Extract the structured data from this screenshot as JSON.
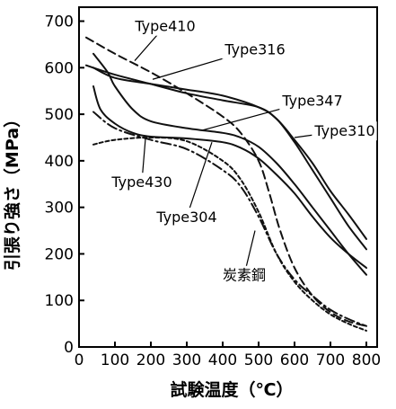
{
  "chart_data": {
    "type": "line",
    "title": "",
    "xlabel": "試験温度（℃）",
    "ylabel": "引張り強さ（MPa）",
    "xlim": [
      0,
      830
    ],
    "ylim": [
      0,
      730
    ],
    "x_ticks": [
      0,
      100,
      200,
      300,
      400,
      500,
      600,
      700,
      800
    ],
    "y_ticks": [
      0,
      100,
      200,
      300,
      400,
      500,
      600,
      700
    ],
    "grid": false,
    "legend": "none",
    "series": [
      {
        "name": "Type410",
        "style": "dashed",
        "points": [
          [
            20,
            665
          ],
          [
            100,
            630
          ],
          [
            200,
            590
          ],
          [
            300,
            545
          ],
          [
            400,
            495
          ],
          [
            450,
            460
          ],
          [
            500,
            400
          ],
          [
            530,
            330
          ],
          [
            560,
            250
          ],
          [
            600,
            170
          ],
          [
            650,
            110
          ],
          [
            700,
            75
          ],
          [
            750,
            55
          ],
          [
            800,
            45
          ]
        ]
      },
      {
        "name": "Type316",
        "style": "solid",
        "points": [
          [
            40,
            600
          ],
          [
            100,
            578
          ],
          [
            200,
            565
          ],
          [
            300,
            553
          ],
          [
            400,
            540
          ],
          [
            500,
            515
          ],
          [
            550,
            490
          ],
          [
            600,
            440
          ],
          [
            650,
            380
          ],
          [
            700,
            320
          ],
          [
            750,
            260
          ],
          [
            800,
            210
          ]
        ]
      },
      {
        "name": "Type347",
        "style": "solid",
        "points": [
          [
            40,
            630
          ],
          [
            80,
            590
          ],
          [
            100,
            560
          ],
          [
            150,
            510
          ],
          [
            200,
            485
          ],
          [
            300,
            470
          ],
          [
            400,
            460
          ],
          [
            450,
            450
          ],
          [
            500,
            430
          ],
          [
            550,
            395
          ],
          [
            600,
            350
          ],
          [
            650,
            300
          ],
          [
            700,
            250
          ],
          [
            750,
            200
          ],
          [
            800,
            155
          ]
        ]
      },
      {
        "name": "Type310",
        "style": "solid",
        "points": [
          [
            20,
            605
          ],
          [
            100,
            585
          ],
          [
            200,
            565
          ],
          [
            300,
            545
          ],
          [
            400,
            530
          ],
          [
            500,
            515
          ],
          [
            550,
            490
          ],
          [
            600,
            445
          ],
          [
            650,
            395
          ],
          [
            700,
            335
          ],
          [
            750,
            285
          ],
          [
            800,
            232
          ]
        ]
      },
      {
        "name": "Type304",
        "style": "solid",
        "points": [
          [
            40,
            560
          ],
          [
            60,
            510
          ],
          [
            100,
            480
          ],
          [
            150,
            460
          ],
          [
            200,
            452
          ],
          [
            300,
            448
          ],
          [
            400,
            440
          ],
          [
            450,
            428
          ],
          [
            500,
            405
          ],
          [
            550,
            370
          ],
          [
            600,
            330
          ],
          [
            650,
            280
          ],
          [
            700,
            235
          ],
          [
            750,
            200
          ],
          [
            800,
            170
          ]
        ]
      },
      {
        "name": "Type430",
        "style": "dash-dot",
        "points": [
          [
            40,
            505
          ],
          [
            100,
            470
          ],
          [
            200,
            445
          ],
          [
            300,
            425
          ],
          [
            400,
            380
          ],
          [
            450,
            345
          ],
          [
            500,
            280
          ],
          [
            550,
            200
          ],
          [
            600,
            145
          ],
          [
            650,
            110
          ],
          [
            700,
            80
          ],
          [
            750,
            60
          ],
          [
            800,
            45
          ]
        ]
      },
      {
        "name": "炭素鋼",
        "style": "dotted",
        "points": [
          [
            40,
            435
          ],
          [
            100,
            445
          ],
          [
            200,
            450
          ],
          [
            300,
            442
          ],
          [
            400,
            400
          ],
          [
            450,
            360
          ],
          [
            500,
            290
          ],
          [
            550,
            200
          ],
          [
            600,
            140
          ],
          [
            650,
            100
          ],
          [
            700,
            70
          ],
          [
            750,
            50
          ],
          [
            800,
            35
          ]
        ]
      }
    ],
    "labels": [
      {
        "text": "Type410",
        "series": "Type410",
        "at": [
          240,
          690
        ],
        "point_to": [
          155,
          615
        ]
      },
      {
        "text": "Type316",
        "series": "Type316",
        "at": [
          490,
          640
        ],
        "point_to": [
          205,
          575
        ]
      },
      {
        "text": "Type347",
        "series": "Type347",
        "at": [
          650,
          530
        ],
        "point_to": [
          345,
          466
        ]
      },
      {
        "text": "Type310",
        "series": "Type310",
        "at": [
          740,
          465
        ],
        "point_to": [
          600,
          450
        ]
      },
      {
        "text": "Type430",
        "series": "Type430",
        "at": [
          175,
          355
        ],
        "point_to": [
          185,
          448
        ]
      },
      {
        "text": "Type304",
        "series": "Type304",
        "at": [
          300,
          280
        ],
        "point_to": [
          370,
          440
        ]
      },
      {
        "text": "炭素鋼",
        "series": "炭素鋼",
        "at": [
          460,
          155
        ],
        "point_to": [
          490,
          250
        ]
      }
    ]
  }
}
